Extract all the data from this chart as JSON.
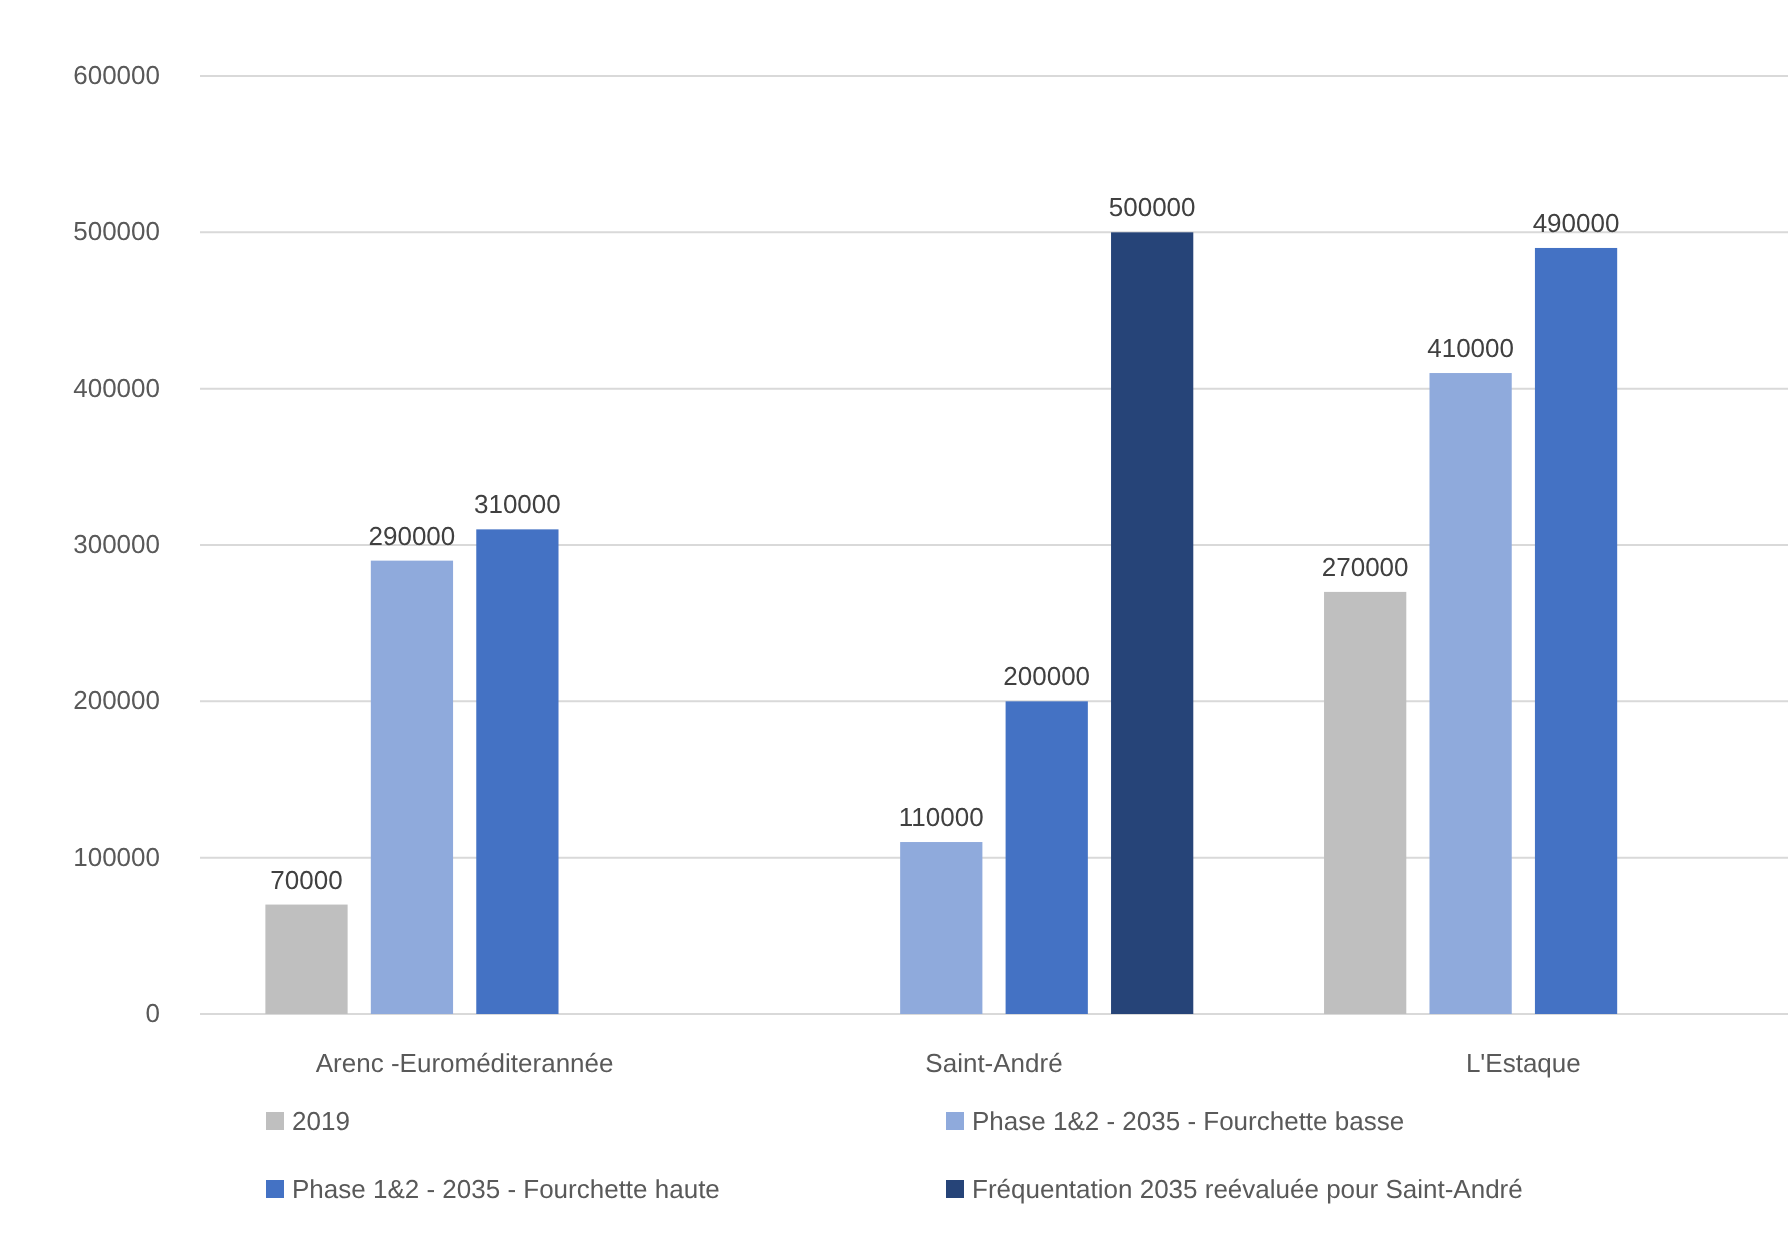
{
  "chart_data": {
    "type": "bar",
    "categories": [
      "Arenc -Euroméditerannée",
      "Saint-André",
      "L'Estaque"
    ],
    "series": [
      {
        "name": "2019",
        "color": "#bfbfbf",
        "values": [
          70000,
          null,
          270000
        ]
      },
      {
        "name": "Phase 1&2 - 2035 - Fourchette basse",
        "color": "#8faadc",
        "values": [
          290000,
          110000,
          410000
        ]
      },
      {
        "name": "Phase 1&2 - 2035 - Fourchette haute",
        "color": "#4472c4",
        "values": [
          310000,
          200000,
          490000
        ]
      },
      {
        "name": "Fréquentation 2035 reévaluée pour Saint-André",
        "color": "#264478",
        "values": [
          null,
          500000,
          null
        ]
      }
    ],
    "ylim": [
      0,
      600000
    ],
    "yticks": [
      0,
      100000,
      200000,
      300000,
      400000,
      500000,
      600000
    ],
    "grid": "y",
    "data_labels": true,
    "legend": "bottom"
  }
}
